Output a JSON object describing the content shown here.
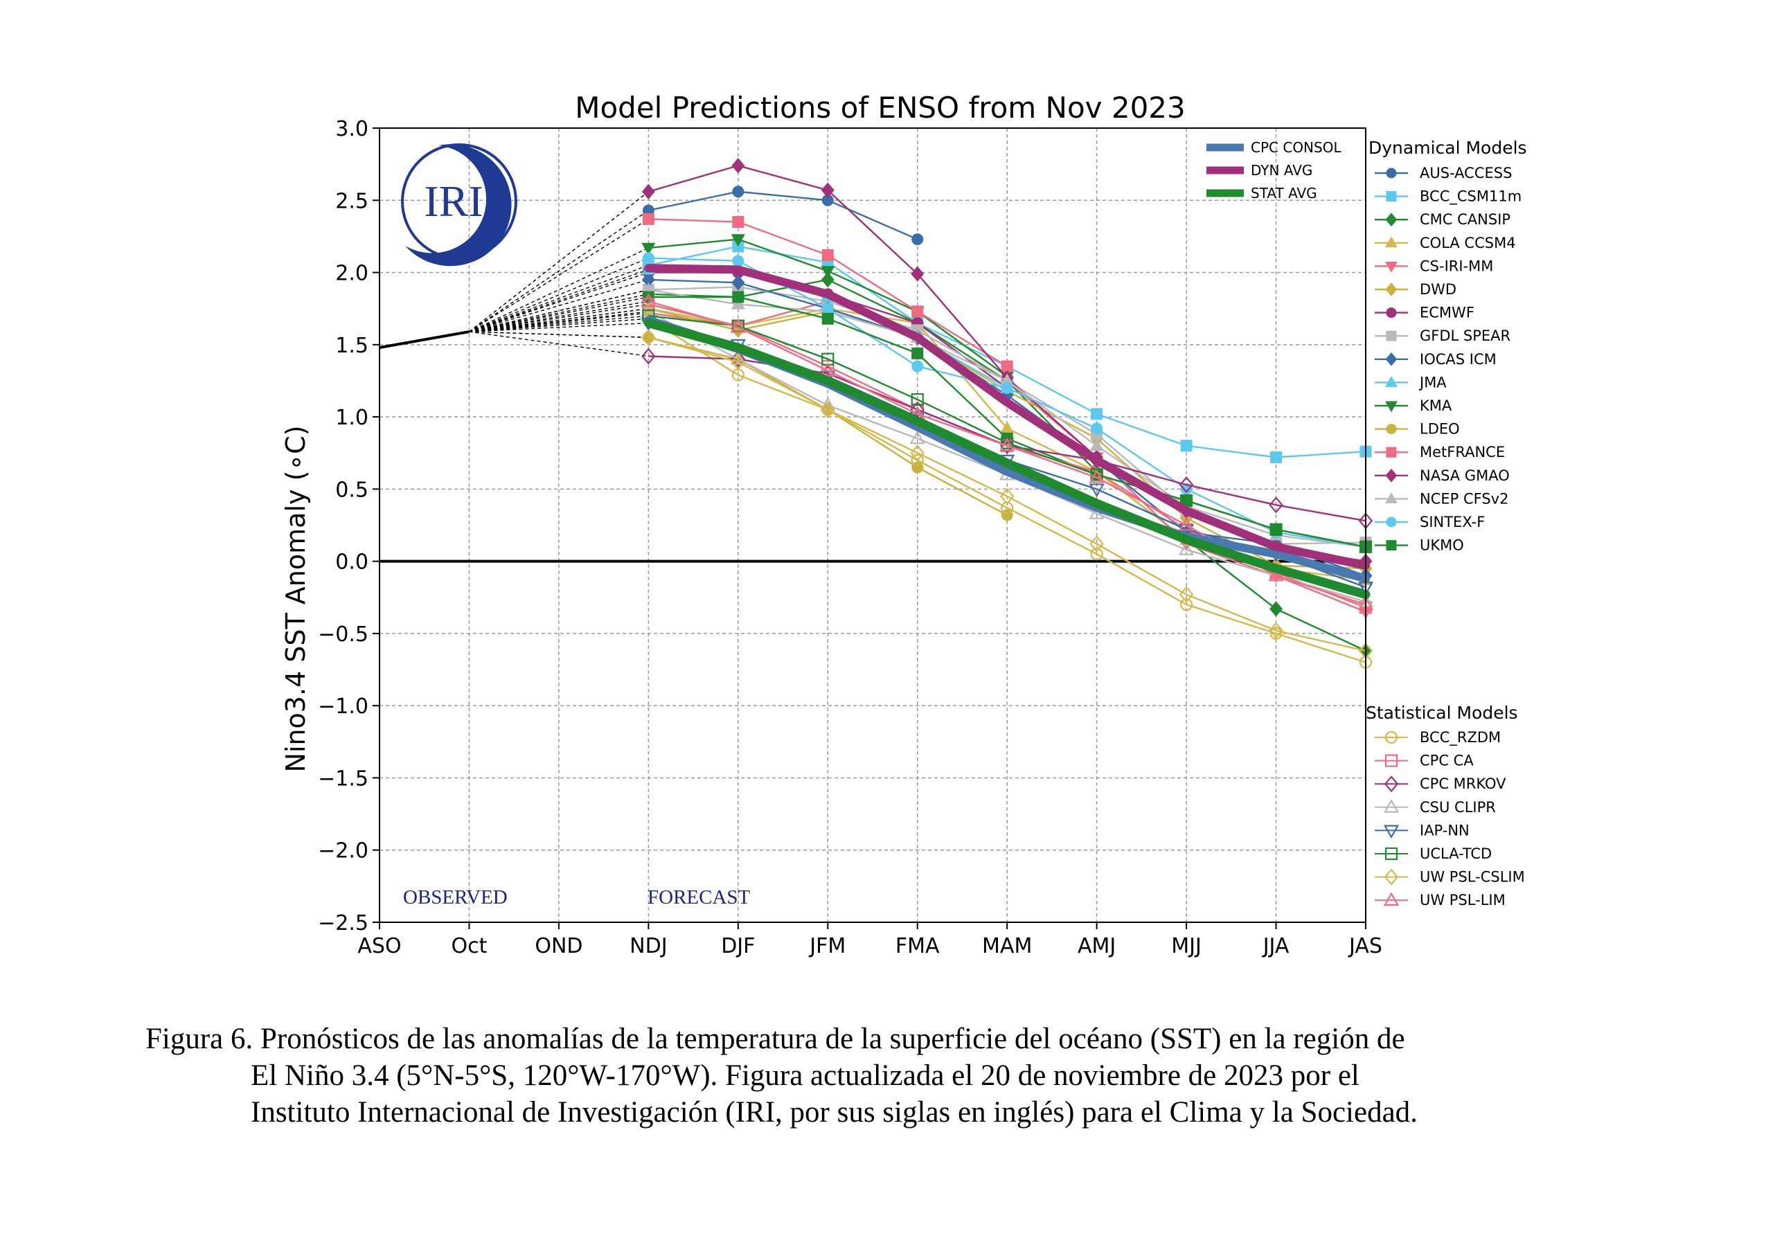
{
  "caption": {
    "line1": "Figura 6. Pronósticos de las anomalías de la temperatura de la superficie del océano (SST) en la región de",
    "line2": "El Niño 3.4 (5°N-5°S, 120°W-170°W). Figura actualizada el 20 de noviembre de 2023 por el",
    "line3": "Instituto Internacional de Investigación (IRI, por sus siglas en inglés) para el Clima y la Sociedad."
  },
  "logo_text": "IRI",
  "chart_data": {
    "type": "line",
    "title": "Model Predictions of ENSO from Nov 2023",
    "xlabel": "",
    "ylabel": "Nino3.4 SST Anomaly (∘C)",
    "categories": [
      "ASO",
      "Oct",
      "OND",
      "NDJ",
      "DJF",
      "JFM",
      "FMA",
      "MAM",
      "AMJ",
      "MJJ",
      "JJA",
      "JAS"
    ],
    "ylim": [
      -2.5,
      3.0
    ],
    "yticks": [
      "3.0",
      "2.5",
      "2.0",
      "1.5",
      "1.0",
      "0.5",
      "0.0",
      "−0.5",
      "−1.0",
      "−1.5",
      "−2.0",
      "−2.5"
    ],
    "ytick_values": [
      3.0,
      2.5,
      2.0,
      1.5,
      1.0,
      0.5,
      0.0,
      -0.5,
      -1.0,
      -1.5,
      -2.0,
      -2.5
    ],
    "grid": true,
    "annotations": {
      "observed": "OBSERVED",
      "forecast": "FORECAST"
    },
    "observed": {
      "x": [
        0,
        1
      ],
      "values": [
        1.48,
        1.59
      ]
    },
    "averages": [
      {
        "name": "CPC CONSOL",
        "color": "#4a79b0",
        "width": 12,
        "values": [
          1.67,
          1.47,
          1.23,
          0.93,
          0.62,
          0.37,
          0.17,
          0.05,
          -0.12
        ]
      },
      {
        "name": "DYN AVG",
        "color": "#a03079",
        "width": 12,
        "values": [
          2.03,
          2.02,
          1.85,
          1.55,
          1.1,
          0.7,
          0.35,
          0.1,
          -0.03
        ]
      },
      {
        "name": "STAT AVG",
        "color": "#1f8a2e",
        "width": 13,
        "values": [
          1.65,
          1.48,
          1.25,
          0.97,
          0.68,
          0.4,
          0.15,
          -0.05,
          -0.23
        ]
      }
    ],
    "dynamical_header": "Dynamical Models",
    "statistical_header": "Statistical Models",
    "dynamical_models": [
      {
        "name": "AUS-ACCESS",
        "color": "#3b6ea8",
        "marker": "circle",
        "values": [
          2.43,
          2.56,
          2.5,
          2.23
        ]
      },
      {
        "name": "BCC_CSM11m",
        "color": "#5cc8ee",
        "marker": "square",
        "values": [
          2.05,
          2.18,
          2.07,
          1.65,
          1.35,
          1.02,
          0.8,
          0.72,
          0.76
        ]
      },
      {
        "name": "CMC CANSIP",
        "color": "#1f8a2e",
        "marker": "diamond",
        "values": [
          1.85,
          1.83,
          1.95,
          1.65,
          1.25,
          0.62,
          0.15,
          -0.33,
          -0.62
        ]
      },
      {
        "name": "COLA CCSM4",
        "color": "#d4b94a",
        "marker": "triangle-up",
        "values": [
          1.75,
          1.63,
          1.75,
          1.65,
          0.92,
          0.62,
          0.15,
          -0.05,
          -0.13
        ]
      },
      {
        "name": "CS-IRI-MM",
        "color": "#ef6b81",
        "marker": "triangle-down",
        "values": [
          1.72,
          1.63,
          1.8,
          1.6,
          1.25,
          0.72,
          0.12,
          -0.1,
          -0.35
        ]
      },
      {
        "name": "DWD",
        "color": "#c8b33e",
        "marker": "diamond",
        "values": [
          1.75,
          1.6,
          1.73,
          1.55,
          1.18,
          0.85,
          0.3,
          -0.03,
          -0.05
        ]
      },
      {
        "name": "ECMWF",
        "color": "#a03079",
        "marker": "circle",
        "values": [
          2.0,
          2.0,
          1.85,
          1.65,
          1.2
        ]
      },
      {
        "name": "GFDL SPEAR",
        "color": "#b9b9b9",
        "marker": "square",
        "values": [
          1.88,
          1.9,
          1.8,
          1.6,
          1.25,
          0.88,
          0.35,
          0.12,
          0.13
        ]
      },
      {
        "name": "IOCAS ICM",
        "color": "#3b6ea8",
        "marker": "diamond",
        "values": [
          1.95,
          1.93,
          1.75,
          1.55,
          1.15,
          0.7,
          0.2,
          0.12,
          -0.1
        ]
      },
      {
        "name": "JMA",
        "color": "#5cc8ee",
        "marker": "triangle-up",
        "values": [
          2.02,
          2.03,
          1.83,
          1.55,
          1.2
        ]
      },
      {
        "name": "KMA",
        "color": "#1f8a2e",
        "marker": "triangle-down",
        "values": [
          2.17,
          2.23,
          2.01,
          1.73,
          1.28
        ]
      },
      {
        "name": "LDEO",
        "color": "#c8b33e",
        "marker": "circle",
        "values": [
          1.55,
          1.4,
          1.05,
          0.65,
          0.32
        ]
      },
      {
        "name": "MetFRANCE",
        "color": "#ef6b81",
        "marker": "square",
        "values": [
          2.37,
          2.35,
          2.12,
          1.73,
          1.35
        ]
      },
      {
        "name": "NASA GMAO",
        "color": "#a03079",
        "marker": "diamond",
        "values": [
          2.56,
          2.74,
          2.57,
          1.99,
          1.27,
          0.72,
          0.35,
          0.1,
          0.0
        ]
      },
      {
        "name": "NCEP CFSv2",
        "color": "#b9b9b9",
        "marker": "triangle-up",
        "values": [
          1.88,
          1.78,
          1.73,
          1.55,
          1.25,
          0.8,
          0.38,
          0.18,
          0.1
        ]
      },
      {
        "name": "SINTEX-F",
        "color": "#5cc8ee",
        "marker": "circle",
        "values": [
          2.1,
          2.08,
          1.75,
          1.35,
          1.2,
          0.92,
          0.5,
          0.2,
          0.1
        ]
      },
      {
        "name": "UKMO",
        "color": "#1f8a2e",
        "marker": "square",
        "values": [
          1.83,
          1.83,
          1.68,
          1.44,
          0.85,
          0.6,
          0.42,
          0.22,
          0.1
        ]
      }
    ],
    "statistical_models": [
      {
        "name": "BCC_RZDM",
        "color": "#d4b94a",
        "marker": "circle-open",
        "values": [
          1.68,
          1.29,
          1.05,
          0.7,
          0.37,
          0.05,
          -0.3,
          -0.5,
          -0.7
        ]
      },
      {
        "name": "CPC CA",
        "color": "#ef6b81",
        "marker": "square-open",
        "values": [
          1.78,
          1.63,
          1.35,
          1.05,
          0.8,
          0.62,
          0.22,
          -0.08,
          -0.32
        ]
      },
      {
        "name": "CPC MRKOV",
        "color": "#a03079",
        "marker": "diamond-open",
        "values": [
          1.42,
          1.4,
          1.3,
          1.05,
          0.8,
          0.7,
          0.53,
          0.39,
          0.28
        ]
      },
      {
        "name": "CSU CLIPR",
        "color": "#b9b9b9",
        "marker": "triangle-up-open",
        "values": [
          1.73,
          1.4,
          1.08,
          0.85,
          0.6,
          0.33,
          0.08,
          -0.1,
          -0.28
        ]
      },
      {
        "name": "IAP-NN",
        "color": "#3b6ea8",
        "marker": "triangle-down-open",
        "values": [
          1.65,
          1.5,
          1.28,
          1.0,
          0.7,
          0.5,
          0.22,
          0.05,
          -0.18
        ]
      },
      {
        "name": "UCLA-TCD",
        "color": "#1f8a2e",
        "marker": "square-open",
        "values": [
          1.7,
          1.63,
          1.4,
          1.12,
          0.82,
          0.6,
          0.42,
          0.22,
          0.1
        ]
      },
      {
        "name": "UW PSL-CSLIM",
        "color": "#d4b94a",
        "marker": "diamond-open",
        "values": [
          1.55,
          1.38,
          1.05,
          0.75,
          0.45,
          0.12,
          -0.23,
          -0.48,
          -0.62
        ]
      },
      {
        "name": "UW PSL-LIM",
        "color": "#ef6b81",
        "marker": "triangle-up-open",
        "values": [
          1.8,
          1.62,
          1.32,
          1.02,
          0.8,
          0.58,
          0.25,
          -0.1,
          -0.3
        ]
      }
    ]
  }
}
